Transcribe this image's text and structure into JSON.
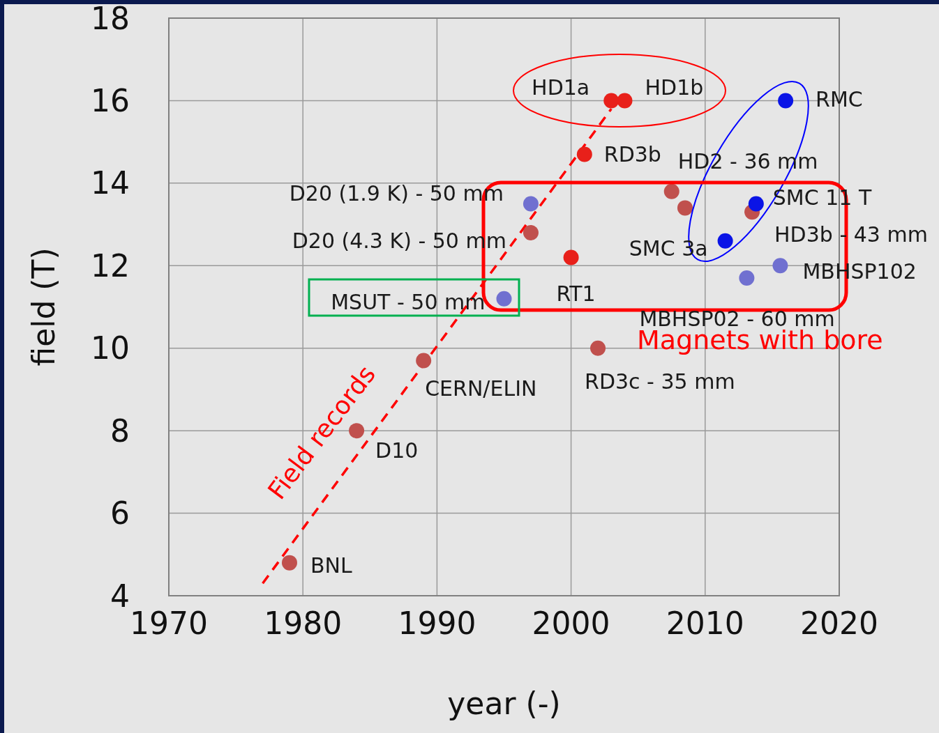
{
  "chart_data": {
    "type": "scatter",
    "xlabel": "year (-)",
    "ylabel": "field (T)",
    "xlim": [
      1970,
      2020
    ],
    "xticks": [
      1970,
      1980,
      1990,
      2000,
      2010,
      2020
    ],
    "ylim": [
      4,
      18
    ],
    "yticks": [
      4,
      6,
      8,
      10,
      12,
      14,
      16,
      18
    ],
    "grid": true,
    "legend": false,
    "marker": "circle",
    "series": [
      {
        "color": "#c0504d",
        "x": [
          1979,
          1984,
          1989,
          1997,
          2002,
          2007.5,
          2008.5,
          2013.5
        ],
        "values": [
          4.8,
          8.0,
          9.7,
          12.8,
          10.0,
          13.8,
          13.4,
          13.3
        ]
      },
      {
        "color": "#e8201a",
        "x": [
          2000,
          2001,
          2003,
          2004
        ],
        "values": [
          12.2,
          14.7,
          16.0,
          16.0
        ]
      },
      {
        "color": "#7070d0",
        "x": [
          1995,
          1997,
          2013.1,
          2015.6
        ],
        "values": [
          11.2,
          13.5,
          11.7,
          12.0
        ]
      },
      {
        "color": "#0a14e6",
        "x": [
          2011.5,
          2013.8,
          2016
        ],
        "values": [
          12.6,
          13.5,
          16.0
        ]
      },
      {
        "type": "line",
        "color": "#ff0000",
        "line_style": "dashed",
        "marker": "none",
        "x": [
          1977,
          2003
        ],
        "values": [
          4.3,
          15.8
        ]
      }
    ],
    "annotations": [
      {
        "text": "BNL",
        "x": 1979,
        "y": 4.8
      },
      {
        "text": "D10",
        "x": 1984,
        "y": 8.0
      },
      {
        "text": "CERN/ELIN",
        "x": 1989,
        "y": 9.7
      },
      {
        "text": "MSUT - 50 mm",
        "x": 1995,
        "y": 11.2
      },
      {
        "text": "D20 (1.9 K) - 50 mm",
        "x": 1997,
        "y": 13.5
      },
      {
        "text": "D20 (4.3 K) - 50 mm",
        "x": 1997,
        "y": 12.8
      },
      {
        "text": "RT1",
        "x": 2000,
        "y": 12.2
      },
      {
        "text": "RD3b",
        "x": 2001,
        "y": 14.7
      },
      {
        "text": "HD1a",
        "x": 2003,
        "y": 16.0
      },
      {
        "text": "HD1b",
        "x": 2004,
        "y": 16.0
      },
      {
        "text": "RD3c - 35 mm",
        "x": 2002,
        "y": 10.0
      },
      {
        "text": "HD2 - 36 mm",
        "x": 2007.5,
        "y": 13.8
      },
      {
        "text": "HD3b - 43 mm",
        "x": 2013.5,
        "y": 13.3
      },
      {
        "text": "SMC 11 T",
        "x": 2013.8,
        "y": 13.5
      },
      {
        "text": "SMC 3a",
        "x": 2011.5,
        "y": 12.6
      },
      {
        "text": "RMC",
        "x": 2016,
        "y": 16.0
      },
      {
        "text": "MBHSP102",
        "x": 2015.6,
        "y": 12.0
      },
      {
        "text": "MBHSP02 - 60 mm",
        "x": 2013.1,
        "y": 11.7
      },
      "Field records",
      "Magnets with bore"
    ]
  }
}
